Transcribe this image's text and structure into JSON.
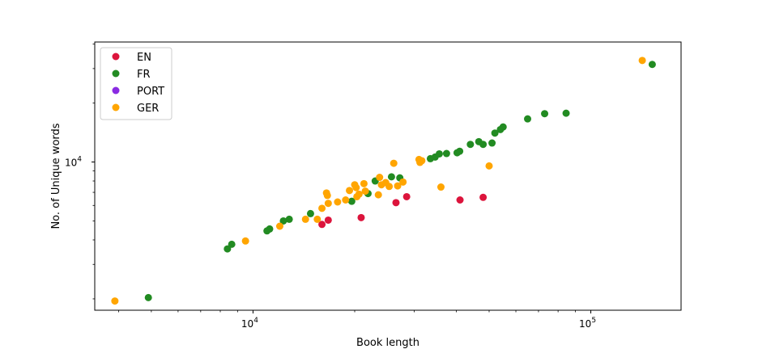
{
  "chart_data": {
    "type": "scatter",
    "xlabel": "Book length",
    "ylabel": "No. of Unique words",
    "xscale": "log",
    "yscale": "log",
    "xlim": [
      3400,
      185000
    ],
    "ylim": [
      1750,
      41000
    ],
    "x_ticks": [
      {
        "value": 10000,
        "base": "10",
        "exp": "4"
      },
      {
        "value": 100000,
        "base": "10",
        "exp": "5"
      }
    ],
    "y_ticks": [
      {
        "value": 10000,
        "base": "10",
        "exp": "4"
      }
    ],
    "grid": false,
    "legend_position": "top-left",
    "series": [
      {
        "name": "EN",
        "color": "#dc143c",
        "points": [
          [
            16000,
            4800
          ],
          [
            16700,
            5050
          ],
          [
            20900,
            5200
          ],
          [
            26500,
            6200
          ],
          [
            28500,
            6650
          ],
          [
            41000,
            6400
          ],
          [
            48000,
            6600
          ]
        ]
      },
      {
        "name": "FR",
        "color": "#228b22",
        "points": [
          [
            4900,
            2030
          ],
          [
            8400,
            3600
          ],
          [
            8650,
            3800
          ],
          [
            11000,
            4450
          ],
          [
            11200,
            4550
          ],
          [
            12300,
            5000
          ],
          [
            12800,
            5100
          ],
          [
            14800,
            5450
          ],
          [
            19600,
            6300
          ],
          [
            21900,
            6900
          ],
          [
            23000,
            8000
          ],
          [
            25700,
            8400
          ],
          [
            27200,
            8300
          ],
          [
            33500,
            10400
          ],
          [
            34600,
            10600
          ],
          [
            35600,
            11000
          ],
          [
            37400,
            11050
          ],
          [
            40200,
            11150
          ],
          [
            40900,
            11350
          ],
          [
            44000,
            12300
          ],
          [
            46600,
            12700
          ],
          [
            48000,
            12300
          ],
          [
            51000,
            12500
          ],
          [
            52000,
            14050
          ],
          [
            54000,
            14650
          ],
          [
            55000,
            15100
          ],
          [
            65000,
            16600
          ],
          [
            73000,
            17650
          ],
          [
            84500,
            17750
          ],
          [
            152000,
            31500
          ]
        ]
      },
      {
        "name": "PORT",
        "color": "#8a2be2",
        "points": []
      },
      {
        "name": "GER",
        "color": "#ffa500",
        "points": [
          [
            3900,
            1950
          ],
          [
            9500,
            3950
          ],
          [
            12000,
            4700
          ],
          [
            14300,
            5100
          ],
          [
            15500,
            5100
          ],
          [
            16000,
            5800
          ],
          [
            16500,
            6950
          ],
          [
            16600,
            6750
          ],
          [
            16700,
            6150
          ],
          [
            17800,
            6250
          ],
          [
            18800,
            6400
          ],
          [
            19300,
            7150
          ],
          [
            20000,
            7650
          ],
          [
            20200,
            7400
          ],
          [
            20300,
            6650
          ],
          [
            20600,
            6850
          ],
          [
            21300,
            7750
          ],
          [
            21500,
            7100
          ],
          [
            23500,
            6800
          ],
          [
            23700,
            8350
          ],
          [
            24000,
            7650
          ],
          [
            24700,
            7850
          ],
          [
            25300,
            7500
          ],
          [
            26100,
            9850
          ],
          [
            26800,
            7550
          ],
          [
            27800,
            7900
          ],
          [
            31000,
            10300
          ],
          [
            31200,
            9950
          ],
          [
            31600,
            10150
          ],
          [
            36000,
            7450
          ],
          [
            50000,
            9550
          ],
          [
            142000,
            33000
          ]
        ]
      }
    ]
  }
}
